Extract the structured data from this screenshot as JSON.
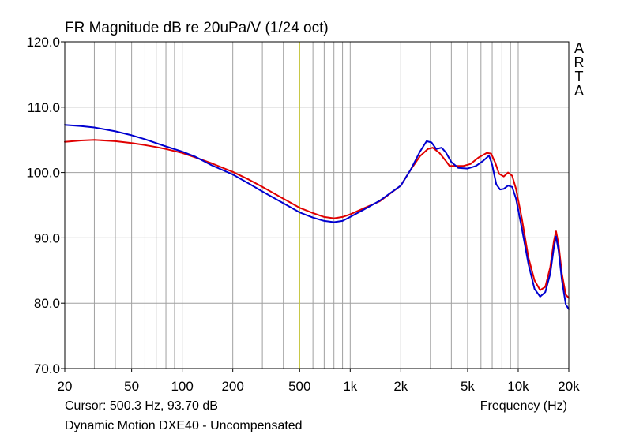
{
  "window": {
    "title": "FR Magnitude dB re 20uPa/V (1/24 oct)",
    "brand": "ARTA",
    "cursor_readout": "Cursor: 500.3 Hz, 93.70 dB",
    "xaxis_label": "Frequency (Hz)",
    "footnote": "Dynamic Motion DXE40 - Uncompensated"
  },
  "colors": {
    "background": "#ffffff",
    "plot_frame": "#000000",
    "grid": "#a0a0a0",
    "cursor_line": "#c8c832",
    "series_red": "#e00000",
    "series_blue": "#0000d0"
  },
  "chart_data": {
    "type": "line",
    "title": "FR Magnitude dB re 20uPa/V (1/24 oct)",
    "xlabel": "Frequency (Hz)",
    "ylabel": "",
    "xscale": "log",
    "xlim": [
      20,
      20000
    ],
    "ylim": [
      70,
      120
    ],
    "grid": true,
    "x_tick_labels": [
      {
        "value": 20,
        "label": "20"
      },
      {
        "value": 50,
        "label": "50"
      },
      {
        "value": 100,
        "label": "100"
      },
      {
        "value": 200,
        "label": "200"
      },
      {
        "value": 500,
        "label": "500"
      },
      {
        "value": 1000,
        "label": "1k"
      },
      {
        "value": 2000,
        "label": "2k"
      },
      {
        "value": 5000,
        "label": "5k"
      },
      {
        "value": 10000,
        "label": "10k"
      },
      {
        "value": 20000,
        "label": "20k"
      }
    ],
    "y_tick_labels": [
      {
        "value": 70,
        "label": "70.0"
      },
      {
        "value": 80,
        "label": "80.0"
      },
      {
        "value": 90,
        "label": "90.0"
      },
      {
        "value": 100,
        "label": "100.0"
      },
      {
        "value": 110,
        "label": "110.0"
      },
      {
        "value": 120,
        "label": "120.0"
      }
    ],
    "cursor": {
      "x": 500.3,
      "y": 93.7
    },
    "series": [
      {
        "color": "#e00000",
        "points": [
          [
            20,
            104.7
          ],
          [
            25,
            104.9
          ],
          [
            30,
            105.0
          ],
          [
            40,
            104.8
          ],
          [
            50,
            104.5
          ],
          [
            60,
            104.2
          ],
          [
            70,
            103.9
          ],
          [
            80,
            103.6
          ],
          [
            100,
            103.0
          ],
          [
            120,
            102.3
          ],
          [
            150,
            101.4
          ],
          [
            200,
            100.1
          ],
          [
            250,
            98.9
          ],
          [
            300,
            97.8
          ],
          [
            400,
            96.0
          ],
          [
            500,
            94.6
          ],
          [
            600,
            93.8
          ],
          [
            700,
            93.2
          ],
          [
            800,
            93.0
          ],
          [
            900,
            93.2
          ],
          [
            1000,
            93.6
          ],
          [
            1200,
            94.5
          ],
          [
            1500,
            95.6
          ],
          [
            2000,
            98.0
          ],
          [
            2300,
            100.5
          ],
          [
            2600,
            102.5
          ],
          [
            2900,
            103.6
          ],
          [
            3100,
            103.8
          ],
          [
            3400,
            103.0
          ],
          [
            3700,
            101.8
          ],
          [
            3900,
            101.0
          ],
          [
            4200,
            101.0
          ],
          [
            4700,
            101.0
          ],
          [
            5200,
            101.3
          ],
          [
            5800,
            102.3
          ],
          [
            6500,
            103.0
          ],
          [
            6900,
            102.9
          ],
          [
            7300,
            101.5
          ],
          [
            7700,
            99.8
          ],
          [
            8200,
            99.4
          ],
          [
            8700,
            100.0
          ],
          [
            9200,
            99.5
          ],
          [
            9700,
            97.5
          ],
          [
            10500,
            93.0
          ],
          [
            11500,
            87.0
          ],
          [
            12500,
            83.5
          ],
          [
            13500,
            82.0
          ],
          [
            14500,
            82.5
          ],
          [
            15500,
            85.5
          ],
          [
            16300,
            89.5
          ],
          [
            16800,
            91.0
          ],
          [
            17400,
            89.0
          ],
          [
            18200,
            84.5
          ],
          [
            19200,
            81.3
          ],
          [
            20000,
            80.8
          ]
        ]
      },
      {
        "color": "#0000d0",
        "points": [
          [
            20,
            107.3
          ],
          [
            25,
            107.1
          ],
          [
            30,
            106.9
          ],
          [
            40,
            106.3
          ],
          [
            50,
            105.7
          ],
          [
            60,
            105.1
          ],
          [
            70,
            104.5
          ],
          [
            80,
            104.0
          ],
          [
            100,
            103.2
          ],
          [
            120,
            102.4
          ],
          [
            150,
            101.1
          ],
          [
            200,
            99.7
          ],
          [
            250,
            98.3
          ],
          [
            300,
            97.1
          ],
          [
            400,
            95.3
          ],
          [
            500,
            93.9
          ],
          [
            600,
            93.1
          ],
          [
            700,
            92.6
          ],
          [
            800,
            92.4
          ],
          [
            900,
            92.6
          ],
          [
            1000,
            93.2
          ],
          [
            1200,
            94.3
          ],
          [
            1500,
            95.7
          ],
          [
            2000,
            98.0
          ],
          [
            2300,
            100.5
          ],
          [
            2600,
            103.2
          ],
          [
            2850,
            104.8
          ],
          [
            3050,
            104.6
          ],
          [
            3250,
            103.6
          ],
          [
            3500,
            103.8
          ],
          [
            3700,
            103.1
          ],
          [
            4000,
            101.6
          ],
          [
            4400,
            100.7
          ],
          [
            5000,
            100.6
          ],
          [
            5600,
            101.0
          ],
          [
            6200,
            101.8
          ],
          [
            6700,
            102.6
          ],
          [
            7000,
            101.2
          ],
          [
            7400,
            98.2
          ],
          [
            7800,
            97.4
          ],
          [
            8200,
            97.5
          ],
          [
            8700,
            98.0
          ],
          [
            9200,
            97.8
          ],
          [
            9700,
            96.0
          ],
          [
            10500,
            91.5
          ],
          [
            11500,
            86.0
          ],
          [
            12500,
            82.2
          ],
          [
            13500,
            81.0
          ],
          [
            14500,
            81.7
          ],
          [
            15500,
            84.5
          ],
          [
            16300,
            88.5
          ],
          [
            16800,
            90.2
          ],
          [
            17400,
            88.0
          ],
          [
            18200,
            83.5
          ],
          [
            19200,
            79.8
          ],
          [
            20000,
            79.1
          ]
        ]
      }
    ]
  }
}
